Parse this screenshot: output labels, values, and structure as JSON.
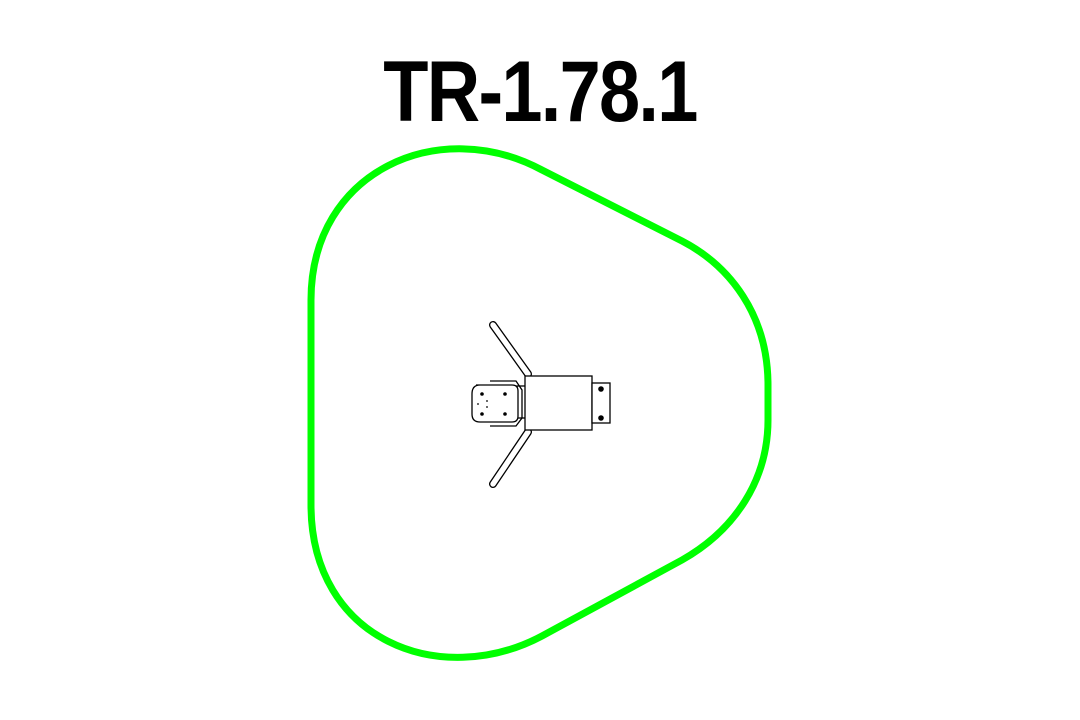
{
  "diagram": {
    "title": "TR-1.78.1"
  },
  "colors": {
    "background": "#ffffff",
    "title": "#000000",
    "safety_zone": "#00ff00",
    "equipment_line": "#000000",
    "equipment_fill": "#ffffff"
  },
  "icons": {
    "equipment": "outdoor-exercise-station-top-view-icon",
    "seat": "seat-icon",
    "handle": "handle-bar-icon",
    "bolt": "bolt-icon"
  }
}
